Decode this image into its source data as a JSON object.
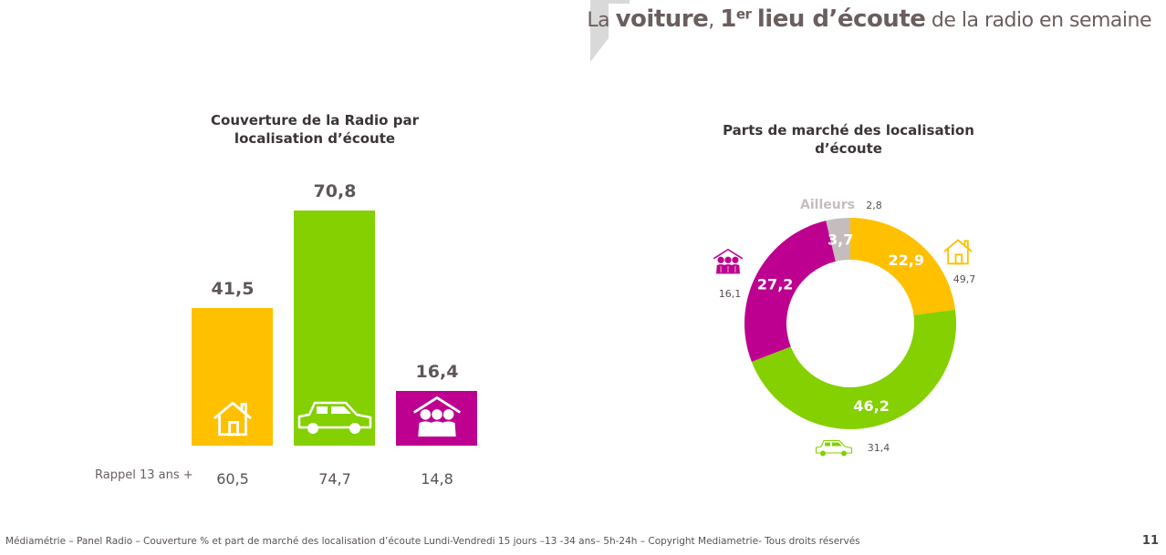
{
  "header": {
    "title_prefix": "La",
    "title_bold1": "voiture",
    "title_comma": ",",
    "title_bold2_num": "1",
    "title_bold2_sup": "er",
    "title_bold3": "lieu d’écoute",
    "title_suffix": "de la radio en semaine"
  },
  "colors": {
    "domicile": "#ffc000",
    "voiture": "#84d000",
    "travail": "#bd0090",
    "ailleurs": "#c5bcbe",
    "text": "#5f5656"
  },
  "chart_data": [
    {
      "type": "bar",
      "title": "Couverture de la Radio par localisation d’écoute",
      "title_line1": "Couverture de la Radio par",
      "title_line2": "localisation d’écoute",
      "categories": [
        "domicile",
        "voiture",
        "travail"
      ],
      "category_icons": [
        "house-icon",
        "car-icon",
        "workplace-icon"
      ],
      "values": [
        41.5,
        70.8,
        16.4
      ],
      "value_labels": [
        "41,5",
        "70,8",
        "16,4"
      ],
      "reminder": {
        "label": "Rappel 13 ans +",
        "values": [
          60.5,
          74.7,
          14.8
        ],
        "value_labels": [
          "60,5",
          "74,7",
          "14,8"
        ]
      },
      "ylim": [
        0,
        70.8
      ]
    },
    {
      "type": "pie",
      "subtype": "donut",
      "title": "Parts de marché des localisation d’écoute",
      "title_line1": "Parts de marché des localisation",
      "title_line2": "d’écoute",
      "slices": [
        {
          "name": "domicile",
          "icon": "house-icon",
          "value": 22.9,
          "label": "22,9",
          "reminder": "49,7"
        },
        {
          "name": "voiture",
          "icon": "car-icon",
          "value": 46.2,
          "label": "46,2",
          "reminder": "31,4"
        },
        {
          "name": "travail",
          "icon": "workplace-icon",
          "value": 27.2,
          "label": "27,2",
          "reminder": "16,1"
        },
        {
          "name": "Ailleurs",
          "icon": null,
          "value": 3.7,
          "label": "3,7",
          "reminder": "2,8"
        }
      ],
      "ailleurs_label": "Ailleurs"
    }
  ],
  "footer": {
    "source": "Médiamétrie – Panel Radio – Couverture % et part de marché des localisation d’écoute  Lundi-Vendredi 15 jours –13 -34 ans– 5h-24h – Copyright Mediametrie- Tous droits réservés",
    "page_number": "11"
  }
}
